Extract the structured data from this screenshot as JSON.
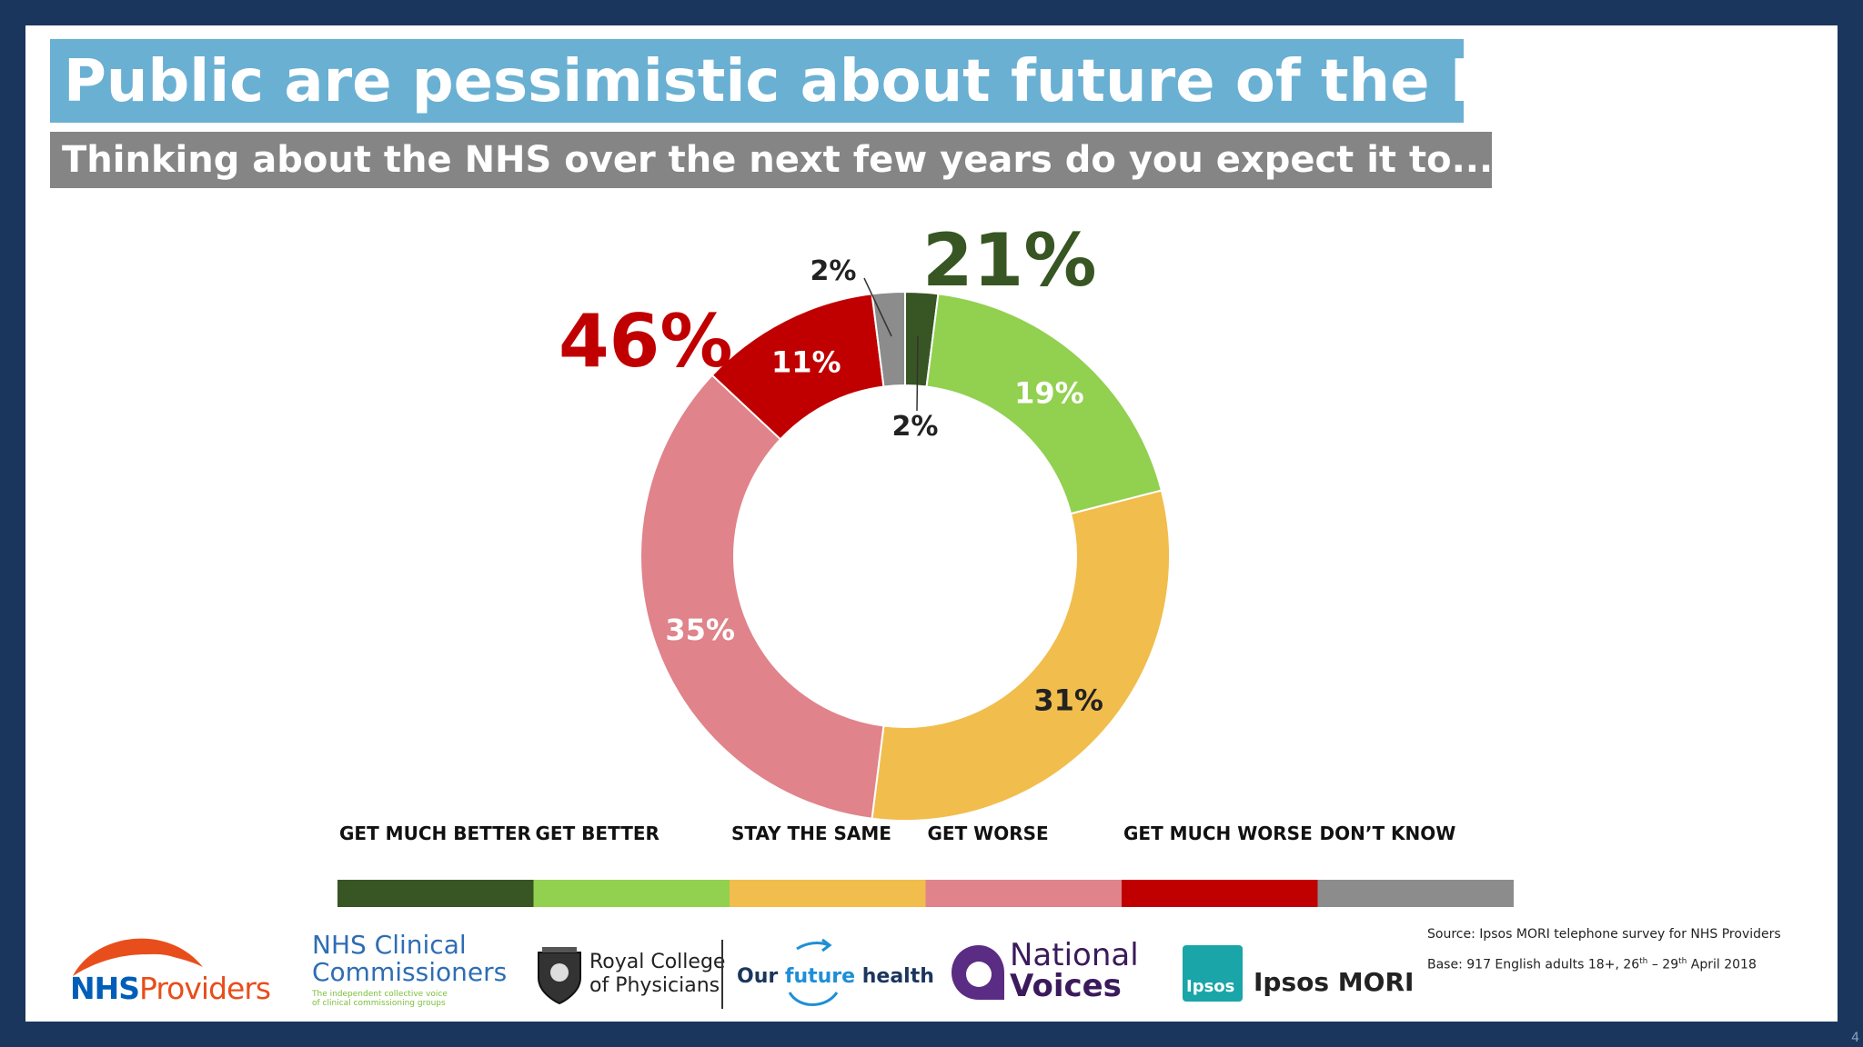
{
  "title": "Public are pessimistic about future of the NHS",
  "subtitle": "Thinking about the NHS over the next few years do you expect it to...?",
  "chart_data": {
    "type": "pie",
    "variant": "donut",
    "categories": [
      "GET MUCH BETTER",
      "GET BETTER",
      "STAY THE SAME",
      "GET WORSE",
      "GET MUCH WORSE",
      "DON’T KNOW"
    ],
    "values": [
      2,
      19,
      31,
      35,
      11,
      2
    ],
    "labels": [
      "2%",
      "19%",
      "31%",
      "35%",
      "11%",
      "2%"
    ],
    "colors": [
      "#375623",
      "#92d050",
      "#f1bd4c",
      "#e0838a",
      "#c00000",
      "#8c8c8c"
    ],
    "legend_placement": "bottom",
    "annotations": {
      "better_total": "21%",
      "worse_total": "46%"
    }
  },
  "footer": {
    "logos": {
      "nhs_providers": {
        "nhs": "NHS",
        "providers": "Providers"
      },
      "nhs_clinical_commissioners": {
        "line1": "NHS Clinical",
        "line2": "Commissioners",
        "tag1": "The independent collective voice",
        "tag2": "of clinical commissioning groups"
      },
      "rcp": {
        "line1": "Royal College",
        "line2": "of Physicians"
      },
      "our_future_health": {
        "our": "Our",
        "future": "future",
        "health": "health"
      },
      "national_voices": {
        "line1": "National",
        "line2": "Voices"
      },
      "ipsos_mori": {
        "badge": "Ipsos",
        "name": "Ipsos MORI"
      }
    },
    "source": "Source: Ipsos MORI telephone survey for NHS Providers",
    "base_prefix": "Base: 917 English adults 18+, 26",
    "base_sup1": "th",
    "base_mid": " – 29",
    "base_sup2": "th",
    "base_suffix": " April 2018"
  },
  "page_number": "4"
}
